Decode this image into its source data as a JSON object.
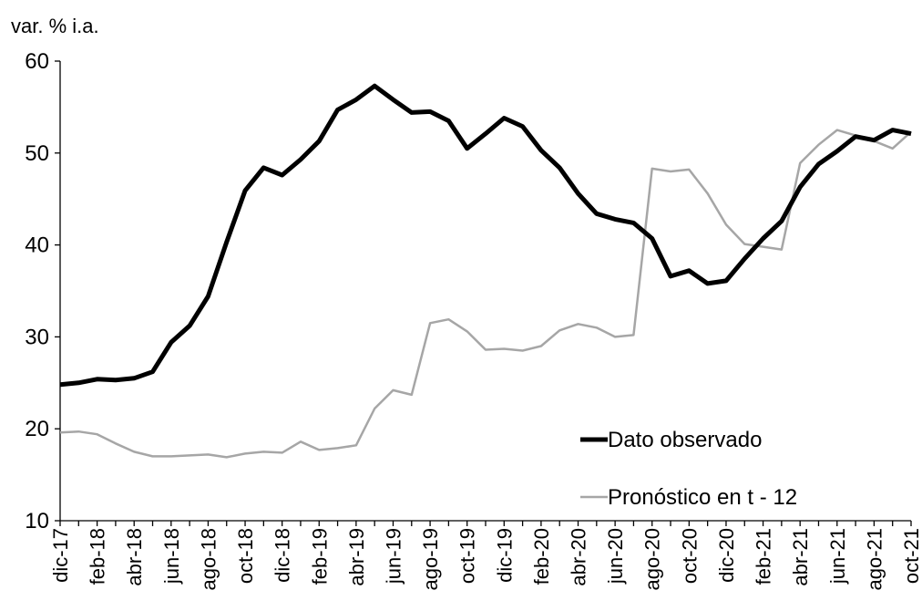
{
  "chart_data": {
    "type": "line",
    "y_label": "var. % i.a.",
    "categories": [
      "dic-17",
      null,
      "feb-18",
      null,
      "abr-18",
      null,
      "jun-18",
      null,
      "ago-18",
      null,
      "oct-18",
      null,
      "dic-18",
      null,
      "feb-19",
      null,
      "abr-19",
      null,
      "jun-19",
      null,
      "ago-19",
      null,
      "oct-19",
      null,
      "dic-19",
      null,
      "feb-20",
      null,
      "abr-20",
      null,
      "jun-20",
      null,
      "ago-20",
      null,
      "oct-20",
      null,
      "dic-20",
      null,
      "feb-21",
      null,
      "abr-21",
      null,
      "jun-21",
      null,
      "ago-21",
      null,
      "oct-21"
    ],
    "series": [
      {
        "name": "Dato observado",
        "color": "#000000",
        "values": [
          24.8,
          25.0,
          25.4,
          25.3,
          25.5,
          26.2,
          29.4,
          31.2,
          34.4,
          40.3,
          45.9,
          48.4,
          47.6,
          49.3,
          51.3,
          54.7,
          55.8,
          57.3,
          55.8,
          54.4,
          54.5,
          53.5,
          50.5,
          52.1,
          53.8,
          52.9,
          50.3,
          48.4,
          45.6,
          43.4,
          42.8,
          42.4,
          40.7,
          36.6,
          37.2,
          35.8,
          36.1,
          38.5,
          40.7,
          42.6,
          46.3,
          48.8,
          50.2,
          51.8,
          51.4,
          52.5,
          52.1
        ]
      },
      {
        "name": "Pronóstico en t - 12",
        "color": "#a6a6a6",
        "values": [
          19.6,
          19.7,
          19.4,
          18.4,
          17.5,
          17.0,
          17.0,
          17.1,
          17.2,
          16.9,
          17.3,
          17.5,
          17.4,
          18.6,
          17.7,
          17.9,
          18.2,
          22.2,
          24.2,
          23.7,
          31.5,
          31.9,
          30.6,
          28.6,
          28.7,
          28.5,
          29.0,
          30.7,
          31.4,
          31.0,
          30.0,
          30.2,
          48.3,
          48.0,
          48.2,
          45.6,
          42.2,
          40.1,
          39.8,
          39.5,
          48.9,
          50.9,
          52.5,
          51.9,
          51.3,
          50.5,
          52.3
        ]
      }
    ],
    "ylim": [
      10,
      60
    ],
    "yticks": [
      10,
      20,
      30,
      40,
      50,
      60
    ],
    "grid": false
  }
}
